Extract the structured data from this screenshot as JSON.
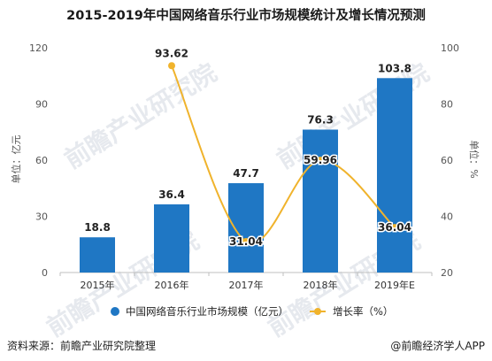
{
  "title": "2015-2019年中国网络音乐行业市场规模统计及增长情况预测",
  "chart_data": {
    "type": "bar+line",
    "categories": [
      "2015年",
      "2016年",
      "2017年",
      "2018年",
      "2019年E"
    ],
    "series": [
      {
        "name": "中国网络音乐行业市场规模（亿元）",
        "type": "bar",
        "axis": "left",
        "values": [
          18.8,
          36.4,
          47.7,
          76.3,
          103.8
        ],
        "labels": [
          "18.8",
          "36.4",
          "47.7",
          "76.3",
          "103.8"
        ],
        "color": "#1f77c4"
      },
      {
        "name": "增长率（%）",
        "type": "line",
        "axis": "right",
        "values": [
          null,
          93.62,
          31.04,
          59.96,
          36.04
        ],
        "labels": [
          "",
          "93.62",
          "31.04",
          "59.96",
          "36.04"
        ],
        "color": "#f0b32c"
      }
    ],
    "ylabel_left": "单位：亿元",
    "ylabel_right": "单位：%",
    "yleft_ticks": [
      "0",
      "30",
      "60",
      "90",
      "120"
    ],
    "yleft_lim": [
      0,
      120
    ],
    "yright_ticks": [
      "20",
      "40",
      "60",
      "80",
      "100"
    ],
    "yright_lim": [
      20,
      100
    ],
    "legend_position": "bottom",
    "grid": false
  },
  "footer": {
    "source": "资料来源：前瞻产业研究院整理",
    "credit": "@前瞻经济学人APP"
  },
  "watermark": "前瞻产业研究院"
}
